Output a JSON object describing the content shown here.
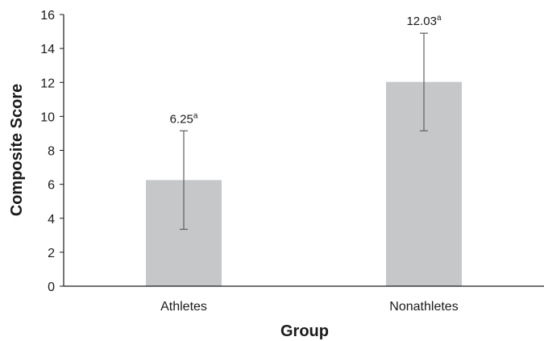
{
  "chart_data": {
    "type": "bar",
    "title": "",
    "xlabel": "Group",
    "ylabel": "Composite Score",
    "categories": [
      "Athletes",
      "Nonathletes"
    ],
    "values": [
      6.25,
      12.03
    ],
    "error_low": [
      3.35,
      9.15
    ],
    "error_high": [
      9.15,
      14.9
    ],
    "data_labels": [
      {
        "value": "6.25",
        "superscript": "a"
      },
      {
        "value": "12.03",
        "superscript": "a"
      }
    ],
    "ylim": [
      0,
      16
    ],
    "yticks": [
      "0",
      "2",
      "4",
      "6",
      "8",
      "10",
      "12",
      "14",
      "16"
    ],
    "grid": false,
    "legend": "none",
    "colors": {
      "bar": "#c6c7c8",
      "error_bar": "#5f5f5f",
      "axis": "#1a1a1a"
    }
  }
}
